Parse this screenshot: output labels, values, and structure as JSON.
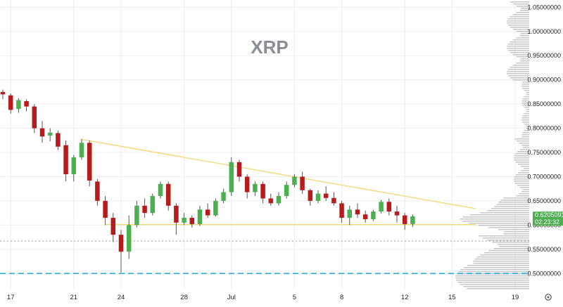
{
  "chart_data": {
    "type": "candlestick",
    "title": "XRP",
    "colors": {
      "up": "#26a69a",
      "down": "#ef5350",
      "upBody": "#4caf50",
      "downBody": "#b71c1c",
      "wick": "#555555",
      "trendline": "#f7d77a",
      "dashed_support": "#26a9d6",
      "dotted_price": "#9e9e9e",
      "volume_profile": "#9e9e9e",
      "price_tag": "#4caf50",
      "grid": "#eeeeee"
    },
    "y_axis": {
      "ticks": [
        "1.05000000",
        "1.00000000",
        "0.95000000",
        "0.90000000",
        "0.85000000",
        "0.80000000",
        "0.75000000",
        "0.70000000",
        "0.65000000",
        "0.60000000",
        "0.55000000",
        "0.50000000"
      ],
      "tick_values": [
        1.05,
        1.0,
        0.95,
        0.9,
        0.85,
        0.8,
        0.75,
        0.7,
        0.65,
        0.6,
        0.55,
        0.5
      ],
      "ylim": [
        0.467,
        1.065
      ]
    },
    "x_axis": {
      "ticks": [
        "17",
        "21",
        "24",
        "28",
        "Jul",
        "5",
        "8",
        "12",
        "15",
        "19"
      ],
      "tick_index": [
        1,
        9,
        15,
        23,
        29,
        37,
        43,
        51,
        57,
        65
      ]
    },
    "current_price": {
      "value": 0.62050911,
      "label": "0.62050911",
      "countdown": "02:23:32"
    },
    "lines": [
      {
        "kind": "trendline",
        "from": [
          10,
          0.777
        ],
        "to": [
          60,
          0.634
        ]
      },
      {
        "kind": "support",
        "from": [
          13,
          0.601
        ],
        "to": [
          60,
          0.601
        ]
      },
      {
        "kind": "dashed",
        "value": 0.5
      },
      {
        "kind": "dotted",
        "value": 0.567
      }
    ],
    "ohlc": [
      [
        0.875,
        0.88,
        0.86,
        0.87
      ],
      [
        0.868,
        0.872,
        0.83,
        0.838
      ],
      [
        0.84,
        0.862,
        0.832,
        0.858
      ],
      [
        0.856,
        0.86,
        0.835,
        0.845
      ],
      [
        0.845,
        0.85,
        0.79,
        0.8
      ],
      [
        0.8,
        0.815,
        0.77,
        0.783
      ],
      [
        0.785,
        0.8,
        0.773,
        0.791
      ],
      [
        0.79,
        0.795,
        0.755,
        0.762
      ],
      [
        0.765,
        0.775,
        0.69,
        0.705
      ],
      [
        0.705,
        0.745,
        0.69,
        0.74
      ],
      [
        0.74,
        0.778,
        0.735,
        0.77
      ],
      [
        0.77,
        0.775,
        0.68,
        0.692
      ],
      [
        0.69,
        0.695,
        0.64,
        0.65
      ],
      [
        0.65,
        0.66,
        0.6,
        0.615
      ],
      [
        0.615,
        0.625,
        0.565,
        0.58
      ],
      [
        0.58,
        0.59,
        0.502,
        0.545
      ],
      [
        0.545,
        0.62,
        0.53,
        0.6
      ],
      [
        0.6,
        0.65,
        0.595,
        0.64
      ],
      [
        0.64,
        0.655,
        0.615,
        0.625
      ],
      [
        0.625,
        0.665,
        0.62,
        0.66
      ],
      [
        0.66,
        0.69,
        0.655,
        0.685
      ],
      [
        0.685,
        0.69,
        0.63,
        0.64
      ],
      [
        0.64,
        0.645,
        0.58,
        0.605
      ],
      [
        0.605,
        0.625,
        0.6,
        0.615
      ],
      [
        0.615,
        0.62,
        0.595,
        0.602
      ],
      [
        0.602,
        0.64,
        0.598,
        0.632
      ],
      [
        0.632,
        0.645,
        0.615,
        0.62
      ],
      [
        0.62,
        0.655,
        0.618,
        0.65
      ],
      [
        0.65,
        0.675,
        0.645,
        0.668
      ],
      [
        0.668,
        0.74,
        0.66,
        0.73
      ],
      [
        0.73,
        0.735,
        0.69,
        0.7
      ],
      [
        0.7,
        0.705,
        0.655,
        0.668
      ],
      [
        0.668,
        0.69,
        0.66,
        0.685
      ],
      [
        0.685,
        0.69,
        0.645,
        0.655
      ],
      [
        0.655,
        0.665,
        0.64,
        0.645
      ],
      [
        0.645,
        0.668,
        0.64,
        0.66
      ],
      [
        0.66,
        0.69,
        0.655,
        0.683
      ],
      [
        0.683,
        0.705,
        0.678,
        0.7
      ],
      [
        0.7,
        0.71,
        0.665,
        0.672
      ],
      [
        0.672,
        0.675,
        0.64,
        0.65
      ],
      [
        0.65,
        0.672,
        0.645,
        0.665
      ],
      [
        0.665,
        0.68,
        0.65,
        0.656
      ],
      [
        0.656,
        0.668,
        0.64,
        0.645
      ],
      [
        0.645,
        0.65,
        0.605,
        0.615
      ],
      [
        0.615,
        0.64,
        0.6,
        0.632
      ],
      [
        0.632,
        0.645,
        0.615,
        0.622
      ],
      [
        0.622,
        0.63,
        0.605,
        0.612
      ],
      [
        0.612,
        0.632,
        0.608,
        0.628
      ],
      [
        0.628,
        0.652,
        0.624,
        0.648
      ],
      [
        0.648,
        0.655,
        0.62,
        0.628
      ],
      [
        0.628,
        0.64,
        0.605,
        0.62
      ],
      [
        0.62,
        0.625,
        0.59,
        0.602
      ],
      [
        0.602,
        0.622,
        0.596,
        0.618
      ]
    ]
  }
}
